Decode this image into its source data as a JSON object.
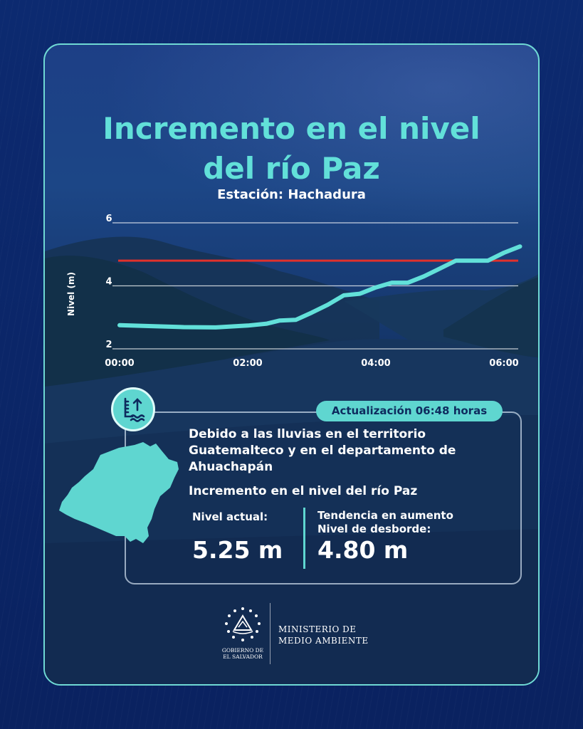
{
  "header": {
    "title_line1": "Incremento en el nivel",
    "title_line2": "del río Paz",
    "station": "Estación: Hachadura"
  },
  "colors": {
    "accent": "#62e0d9",
    "threshold_line": "#e0312c",
    "background": "#0b2566"
  },
  "chart_data": {
    "type": "line",
    "ylabel": "Nivel (m)",
    "xlabel": "",
    "ylim": [
      2,
      6
    ],
    "yticks": [
      "2",
      "4",
      "6"
    ],
    "xticks": [
      "00:00",
      "02:00",
      "04:00",
      "06:00"
    ],
    "x_range_hours": [
      0,
      6.3
    ],
    "grid": true,
    "series": [
      {
        "points": [
          [
            0.0,
            2.75
          ],
          [
            0.5,
            2.72
          ],
          [
            1.0,
            2.69
          ],
          [
            1.5,
            2.68
          ],
          [
            2.0,
            2.74
          ],
          [
            2.3,
            2.8
          ],
          [
            2.5,
            2.9
          ],
          [
            2.75,
            2.92
          ],
          [
            3.0,
            3.15
          ],
          [
            3.25,
            3.4
          ],
          [
            3.5,
            3.7
          ],
          [
            3.75,
            3.75
          ],
          [
            4.0,
            3.95
          ],
          [
            4.25,
            4.1
          ],
          [
            4.5,
            4.1
          ],
          [
            4.75,
            4.3
          ],
          [
            5.0,
            4.55
          ],
          [
            5.25,
            4.8
          ],
          [
            5.5,
            4.8
          ],
          [
            5.75,
            4.8
          ],
          [
            6.0,
            5.05
          ],
          [
            6.25,
            5.25
          ]
        ]
      }
    ],
    "threshold": {
      "value": 4.8
    }
  },
  "info": {
    "update_badge": "Actualización 06:48 horas",
    "description": "Debido a las lluvias en el territorio Guatemalteco y en el departamento de Ahuachapán",
    "headline": "Incremento en el nivel del río Paz",
    "current_label": "Nivel actual:",
    "current_value": "5.25 m",
    "trend_label": "Tendencia en aumento",
    "flood_label": "Nivel de desborde:",
    "flood_value": "4.80 m"
  },
  "footer": {
    "gov_line1": "GOBIERNO DE",
    "gov_line2": "EL SALVADOR",
    "ministry_line1": "MINISTERIO DE",
    "ministry_line2": "MEDIO AMBIENTE"
  },
  "icons": {
    "station": "water-level-gauge-icon",
    "map": "ahuachapan-map-shape",
    "seal": "el-salvador-coat-of-arms-icon"
  }
}
